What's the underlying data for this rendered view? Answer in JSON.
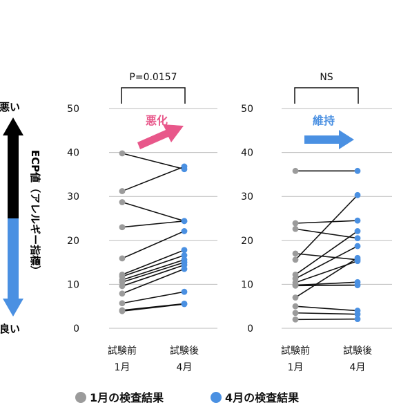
{
  "side_axis": {
    "top_label": "悪い",
    "bottom_label": "良い",
    "title": "ECP値（アレルギー指標）",
    "color_dark": "#000000",
    "color_light": "#4a90e2"
  },
  "colors": {
    "dot_jan": "#9b9b9b",
    "dot_apr": "#4a90e2",
    "line": "#111111",
    "grid": "#bbbbbb",
    "arrow_worse": "#e8578a",
    "arrow_keep": "#4a90e2"
  },
  "chart_data": [
    {
      "type": "line",
      "stat_label": "P=0.0157",
      "annotation": "悪化",
      "annotation_color": "#e8578a",
      "arrow": "diagonal-up",
      "categories": [
        "試験前\n1月",
        "試験後\n4月"
      ],
      "category_lines": [
        [
          "試験前",
          "1月"
        ],
        [
          "試験後",
          "4月"
        ]
      ],
      "yticks": [
        0,
        10,
        20,
        30,
        40,
        50
      ],
      "ylim": [
        0,
        50
      ],
      "grid": true,
      "pairs": [
        [
          39.8,
          36.2
        ],
        [
          31.2,
          36.8
        ],
        [
          28.7,
          24.4
        ],
        [
          23.0,
          24.4
        ],
        [
          15.9,
          22.1
        ],
        [
          12.2,
          17.8
        ],
        [
          11.8,
          16.6
        ],
        [
          11.0,
          15.6
        ],
        [
          10.5,
          15.0
        ],
        [
          9.6,
          14.4
        ],
        [
          7.9,
          13.5
        ],
        [
          5.7,
          8.3
        ],
        [
          4.1,
          5.6
        ],
        [
          3.9,
          5.5
        ]
      ]
    },
    {
      "type": "line",
      "stat_label": "NS",
      "annotation": "維持",
      "annotation_color": "#4a90e2",
      "arrow": "horizontal",
      "categories": [
        "試験前\n1月",
        "試験後\n4月"
      ],
      "category_lines": [
        [
          "試験前",
          "1月"
        ],
        [
          "試験後",
          "4月"
        ]
      ],
      "yticks": [
        0,
        10,
        20,
        30,
        40,
        50
      ],
      "ylim": [
        0,
        50
      ],
      "grid": true,
      "pairs": [
        [
          35.8,
          35.8
        ],
        [
          23.9,
          24.5
        ],
        [
          22.6,
          20.5
        ],
        [
          17.0,
          15.6
        ],
        [
          15.6,
          30.3
        ],
        [
          12.2,
          22.1
        ],
        [
          11.3,
          18.7
        ],
        [
          10.4,
          15.3
        ],
        [
          9.8,
          10.5
        ],
        [
          9.7,
          9.8
        ],
        [
          7.0,
          16.0
        ],
        [
          5.0,
          4.0
        ],
        [
          3.5,
          3.2
        ],
        [
          2.0,
          2.1
        ]
      ]
    }
  ],
  "legend": [
    {
      "label": "1月の検査結果",
      "color": "#9b9b9b"
    },
    {
      "label": "4月の検査結果",
      "color": "#4a90e2"
    }
  ]
}
